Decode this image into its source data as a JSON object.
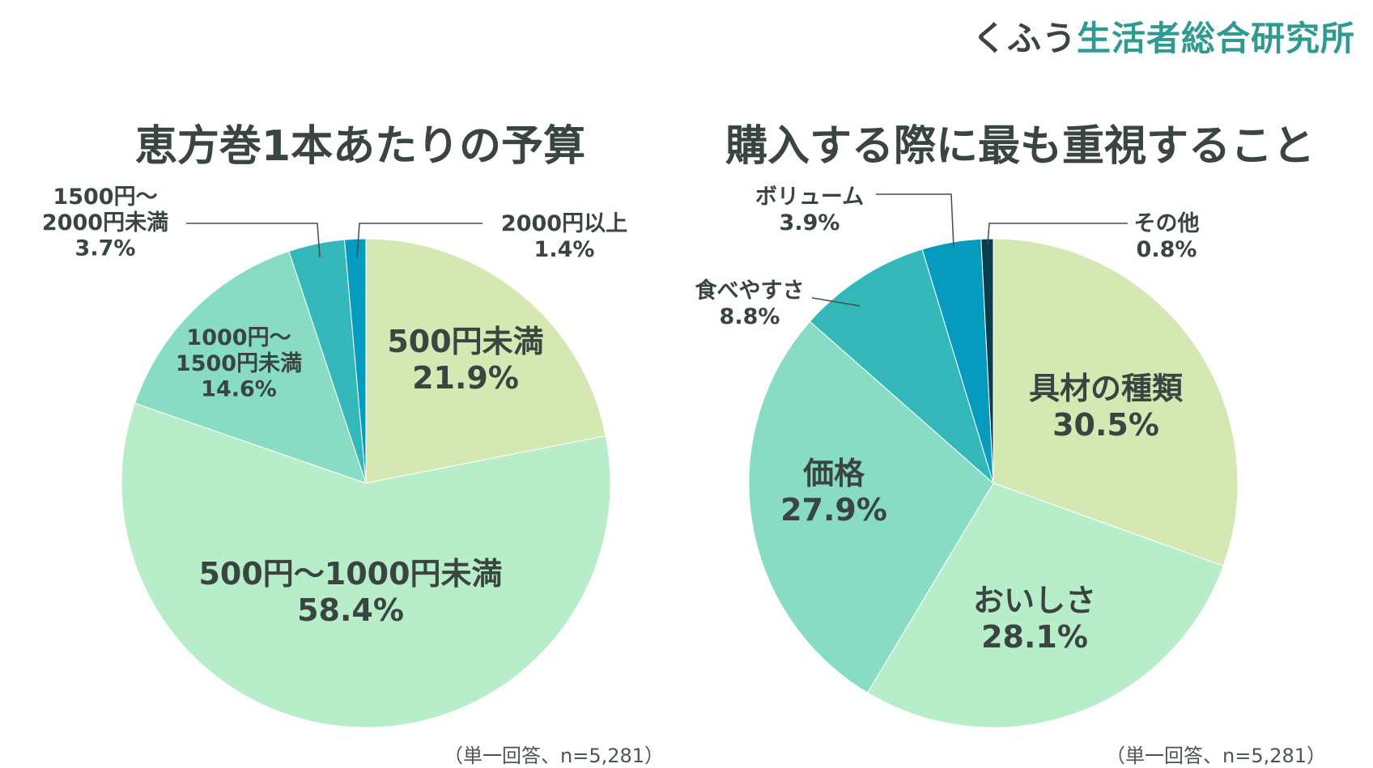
{
  "brand": {
    "part1": "くふう",
    "part2": "生活者総合研究所"
  },
  "colors": {
    "text": "#3a4541",
    "leader": "#4a4a4a",
    "slices": [
      "#d5e8b4",
      "#b7eec9",
      "#88dcc3",
      "#33b7b8",
      "#059bbe",
      "#0a3d4c"
    ]
  },
  "chart_data": [
    {
      "type": "pie",
      "title": "恵方巻1本あたりの予算",
      "note": "（単一回答、n=5,281）",
      "slices": [
        {
          "label": "500円未満",
          "value": 21.9,
          "value_label": "21.9%"
        },
        {
          "label": "500円〜1000円未満",
          "value": 58.4,
          "value_label": "58.4%"
        },
        {
          "label": "1000円〜1500円未満",
          "label_lines": [
            "1000円〜",
            "1500円未満"
          ],
          "value": 14.6,
          "value_label": "14.6%"
        },
        {
          "label": "1500円〜2000円未満",
          "label_lines": [
            "1500円〜",
            "2000円未満"
          ],
          "value": 3.7,
          "value_label": "3.7%"
        },
        {
          "label": "2000円以上",
          "value": 1.4,
          "value_label": "1.4%"
        }
      ]
    },
    {
      "type": "pie",
      "title": "購入する際に最も重視すること",
      "note": "（単一回答、n=5,281）",
      "slices": [
        {
          "label": "具材の種類",
          "value": 30.5,
          "value_label": "30.5%"
        },
        {
          "label": "おいしさ",
          "value": 28.1,
          "value_label": "28.1%"
        },
        {
          "label": "価格",
          "value": 27.9,
          "value_label": "27.9%"
        },
        {
          "label": "食べやすさ",
          "value": 8.8,
          "value_label": "8.8%"
        },
        {
          "label": "ボリューム",
          "value": 3.9,
          "value_label": "3.9%"
        },
        {
          "label": "その他",
          "value": 0.8,
          "value_label": "0.8%"
        }
      ]
    }
  ]
}
